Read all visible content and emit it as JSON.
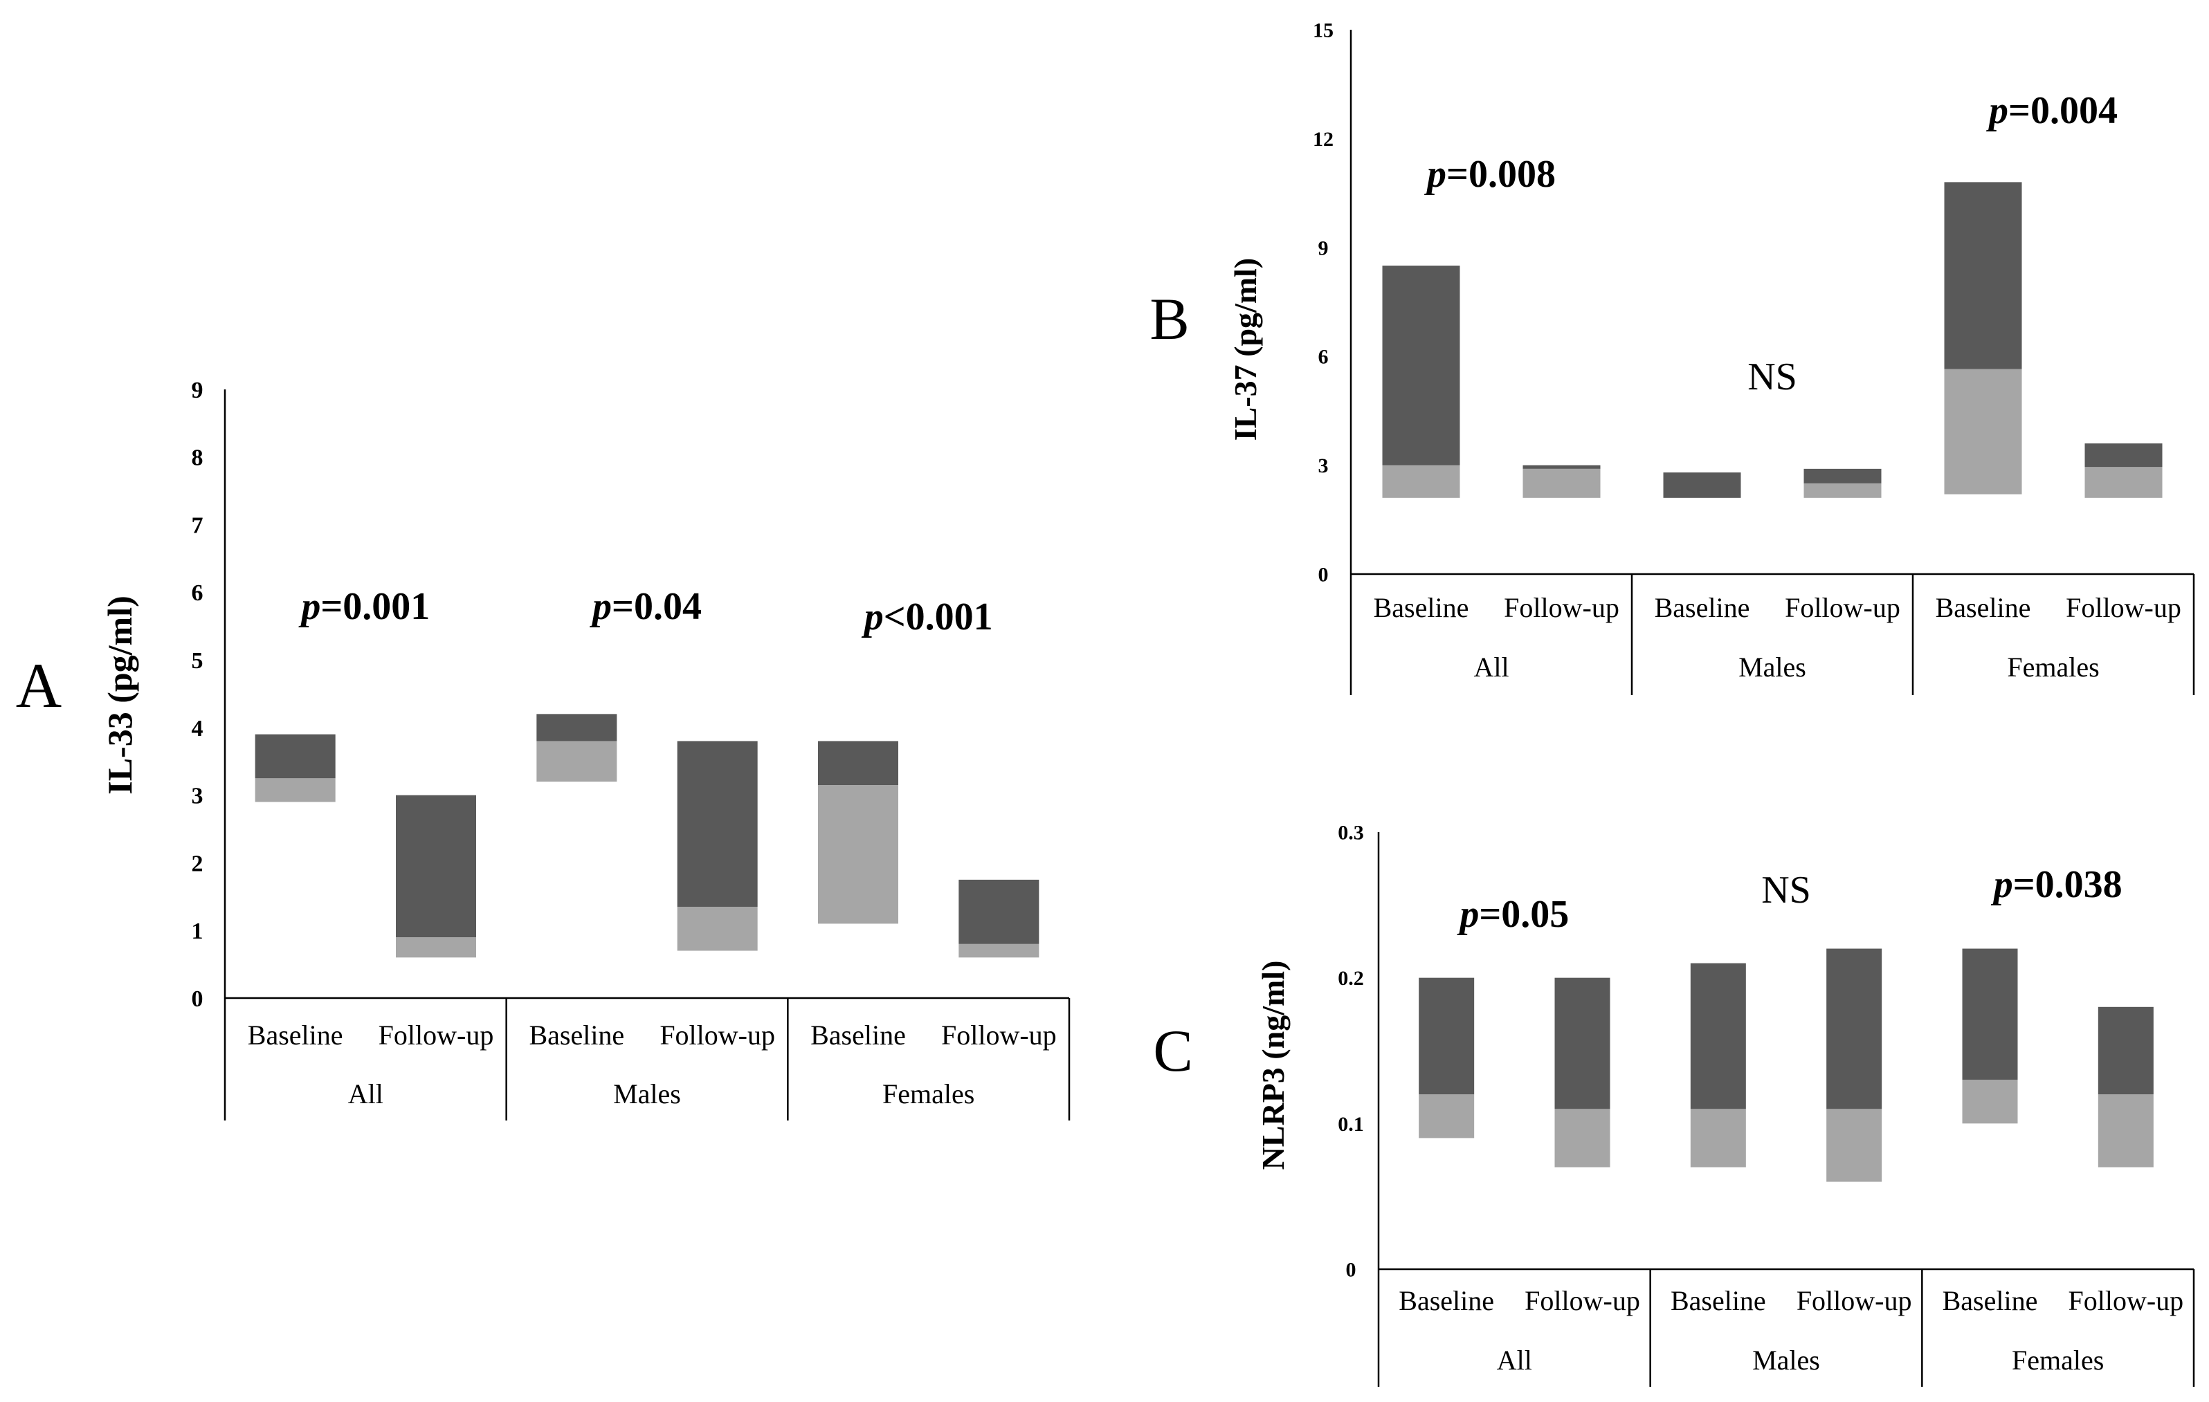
{
  "colors": {
    "dark": "#595959",
    "light": "#a6a6a6",
    "axis": "#000000"
  },
  "chart_data": [
    {
      "id": "A",
      "type": "bar",
      "subtype": "floating-stacked",
      "panel_label": "A",
      "ylabel": "IL-33 (pg/ml)",
      "ylim": [
        0,
        9
      ],
      "yticks": [
        "0",
        "1",
        "2",
        "3",
        "4",
        "5",
        "6",
        "7",
        "8",
        "9"
      ],
      "groups": [
        {
          "label": "All",
          "pvalue": {
            "p": "p",
            "rest": "=0.001"
          },
          "bars": [
            {
              "label": "Baseline",
              "bottom": 2.9,
              "mid": 3.25,
              "top": 3.9
            },
            {
              "label": "Follow-up",
              "bottom": 0.6,
              "mid": 0.9,
              "top": 3.0
            }
          ]
        },
        {
          "label": "Males",
          "pvalue": {
            "p": "p",
            "rest": "=0.04"
          },
          "bars": [
            {
              "label": "Baseline",
              "bottom": 3.2,
              "mid": 3.8,
              "top": 4.2
            },
            {
              "label": "Follow-up",
              "bottom": 0.7,
              "mid": 1.35,
              "top": 3.8
            }
          ]
        },
        {
          "label": "Females",
          "pvalue": {
            "p": "p",
            "rest": "<0.001"
          },
          "bars": [
            {
              "label": "Baseline",
              "bottom": 1.1,
              "mid": 3.15,
              "top": 3.8
            },
            {
              "label": "Follow-up",
              "bottom": 0.6,
              "mid": 0.8,
              "top": 1.75
            }
          ]
        }
      ]
    },
    {
      "id": "B",
      "type": "bar",
      "subtype": "floating-stacked",
      "panel_label": "B",
      "ylabel": "IL-37 (pg/ml)",
      "ylim": [
        0,
        15
      ],
      "yticks": [
        "0",
        "3",
        "6",
        "9",
        "12",
        "15"
      ],
      "groups": [
        {
          "label": "All",
          "pvalue": {
            "p": "p",
            "rest": "=0.008"
          },
          "bars": [
            {
              "label": "Baseline",
              "bottom": 2.1,
              "mid": 3.0,
              "top": 8.5
            },
            {
              "label": "Follow-up",
              "bottom": 2.1,
              "mid": 2.9,
              "top": 3.0
            }
          ]
        },
        {
          "label": "Males",
          "ns": "NS",
          "bars": [
            {
              "label": "Baseline",
              "bottom": 2.1,
              "mid": 2.1,
              "top": 2.8
            },
            {
              "label": "Follow-up",
              "bottom": 2.1,
              "mid": 2.5,
              "top": 2.9
            }
          ]
        },
        {
          "label": "Females",
          "pvalue": {
            "p": "p",
            "rest": "=0.004"
          },
          "bars": [
            {
              "label": "Baseline",
              "bottom": 2.2,
              "mid": 5.65,
              "top": 10.8
            },
            {
              "label": "Follow-up",
              "bottom": 2.1,
              "mid": 2.95,
              "top": 3.6
            }
          ]
        }
      ]
    },
    {
      "id": "C",
      "type": "bar",
      "subtype": "floating-stacked",
      "panel_label": "C",
      "ylabel": "NLRP3 (ng/ml)",
      "ylim": [
        0,
        0.3
      ],
      "yticks": [
        "0",
        "0.1",
        "0.2",
        "0.3"
      ],
      "groups": [
        {
          "label": "All",
          "pvalue": {
            "p": "p",
            "rest": "=0.05"
          },
          "bars": [
            {
              "label": "Baseline",
              "bottom": 0.09,
              "mid": 0.12,
              "top": 0.2
            },
            {
              "label": "Follow-up",
              "bottom": 0.07,
              "mid": 0.11,
              "top": 0.2
            }
          ]
        },
        {
          "label": "Males",
          "ns": "NS",
          "bars": [
            {
              "label": "Baseline",
              "bottom": 0.07,
              "mid": 0.11,
              "top": 0.21
            },
            {
              "label": "Follow-up",
              "bottom": 0.06,
              "mid": 0.11,
              "top": 0.22
            }
          ]
        },
        {
          "label": "Females",
          "pvalue": {
            "p": "p",
            "rest": "=0.038"
          },
          "bars": [
            {
              "label": "Baseline",
              "bottom": 0.1,
              "mid": 0.13,
              "top": 0.22
            },
            {
              "label": "Follow-up",
              "bottom": 0.07,
              "mid": 0.12,
              "top": 0.18
            }
          ]
        }
      ]
    }
  ]
}
